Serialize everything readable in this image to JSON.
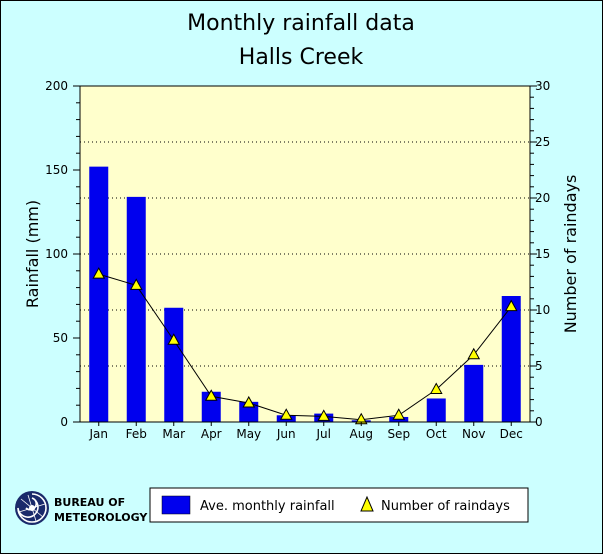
{
  "chart_data": {
    "type": "bar",
    "title": "Monthly rainfall data",
    "subtitle": "Halls Creek",
    "categories": [
      "Jan",
      "Feb",
      "Mar",
      "Apr",
      "May",
      "Jun",
      "Jul",
      "Aug",
      "Sep",
      "Oct",
      "Nov",
      "Dec"
    ],
    "series": [
      {
        "name": "Ave. monthly rainfall",
        "type": "bar",
        "axis": "left",
        "color": "#0000ee",
        "values": [
          152,
          134,
          68,
          18,
          12,
          4,
          5,
          1,
          3,
          14,
          34,
          75
        ]
      },
      {
        "name": "Number of raindays",
        "type": "line",
        "marker": "triangle",
        "axis": "right",
        "color": "#ffff00",
        "values": [
          13.2,
          12.2,
          7.3,
          2.3,
          1.7,
          0.6,
          0.5,
          0.2,
          0.6,
          2.9,
          6.0,
          10.3
        ]
      }
    ],
    "ylabel": "Rainfall (mm)",
    "ylim": [
      0,
      200
    ],
    "yticks": [
      0,
      50,
      100,
      150,
      200
    ],
    "y2label": "Number of raindays",
    "y2lim": [
      0,
      30
    ],
    "y2ticks": [
      0,
      5,
      10,
      15,
      20,
      25,
      30
    ],
    "grid": "horizontal-dotted",
    "plot_background": "#ffffcc",
    "legend_position": "bottom"
  },
  "branding": {
    "line1": "BUREAU OF",
    "line2": "METEOROLOGY",
    "logo": "bom-swirl-icon"
  },
  "background_color": "#ccffff"
}
